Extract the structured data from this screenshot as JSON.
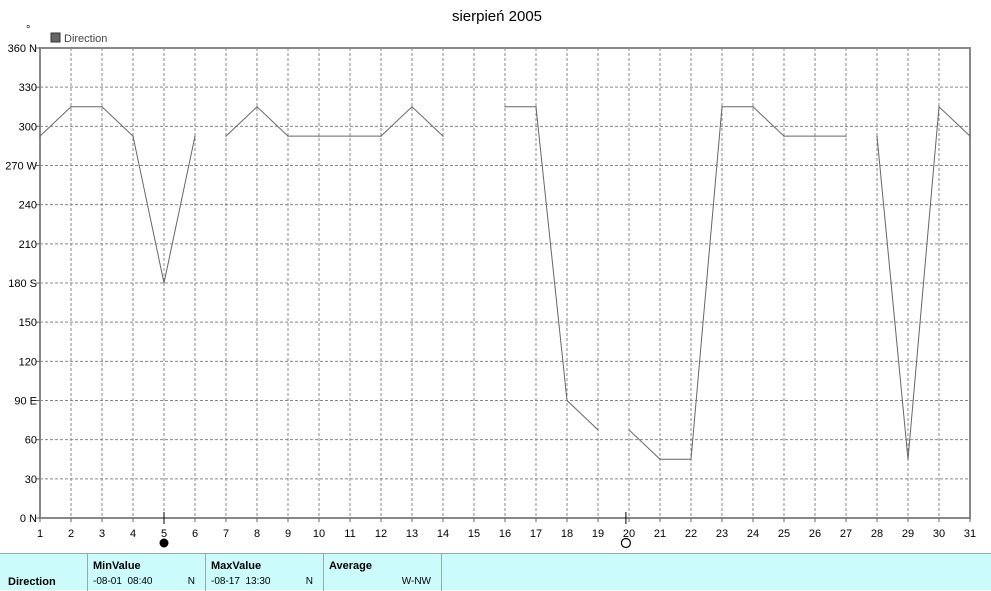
{
  "chart_data": {
    "type": "line",
    "title": "sierpień 2005",
    "y_unit_mark": "°",
    "legend": [
      "Direction"
    ],
    "series_color": "#666666",
    "ylim": [
      0,
      360
    ],
    "yticks": [
      {
        "v": 0,
        "label": "0",
        "dir": "N"
      },
      {
        "v": 30,
        "label": "30",
        "dir": ""
      },
      {
        "v": 60,
        "label": "60",
        "dir": ""
      },
      {
        "v": 90,
        "label": "90",
        "dir": "E"
      },
      {
        "v": 120,
        "label": "120",
        "dir": ""
      },
      {
        "v": 150,
        "label": "150",
        "dir": ""
      },
      {
        "v": 180,
        "label": "180",
        "dir": "S"
      },
      {
        "v": 210,
        "label": "210",
        "dir": ""
      },
      {
        "v": 240,
        "label": "240",
        "dir": ""
      },
      {
        "v": 270,
        "label": "270",
        "dir": "W"
      },
      {
        "v": 300,
        "label": "300",
        "dir": ""
      },
      {
        "v": 330,
        "label": "330",
        "dir": ""
      },
      {
        "v": 360,
        "label": "360",
        "dir": "N"
      }
    ],
    "xlim": [
      1,
      31
    ],
    "xticks": [
      "1",
      "2",
      "3",
      "4",
      "5",
      "6",
      "7",
      "8",
      "9",
      "10",
      "11",
      "12",
      "13",
      "14",
      "15",
      "16",
      "17",
      "18",
      "19",
      "20",
      "21",
      "22",
      "23",
      "24",
      "25",
      "26",
      "27",
      "28",
      "29",
      "30",
      "31"
    ],
    "grid": true,
    "series": [
      {
        "name": "Direction",
        "segments": [
          [
            [
              1,
              292.5
            ],
            [
              2,
              315
            ],
            [
              3,
              315
            ],
            [
              4,
              292.5
            ],
            [
              5,
              180
            ],
            [
              6,
              292.5
            ]
          ],
          [
            [
              7,
              292.5
            ],
            [
              8,
              315
            ],
            [
              9,
              292.5
            ],
            [
              10,
              292.5
            ],
            [
              11,
              292.5
            ],
            [
              12,
              292.5
            ],
            [
              13,
              315
            ],
            [
              14,
              292.5
            ]
          ],
          [
            [
              16,
              315
            ],
            [
              17,
              315
            ],
            [
              18,
              90
            ],
            [
              19,
              67.5
            ]
          ],
          [
            [
              20,
              67.5
            ],
            [
              21,
              45
            ],
            [
              22,
              45
            ],
            [
              23,
              315
            ],
            [
              24,
              315
            ],
            [
              25,
              292.5
            ],
            [
              26,
              292.5
            ],
            [
              27,
              292.5
            ]
          ],
          [
            [
              28,
              292.5
            ],
            [
              29,
              45
            ],
            [
              30,
              315
            ],
            [
              31,
              292.5
            ]
          ]
        ]
      }
    ],
    "moon_phases": [
      {
        "day": 5,
        "phase": "new-moon"
      },
      {
        "day": 19.9,
        "phase": "full-moon"
      }
    ]
  },
  "stats": {
    "row_label": "Direction",
    "min": {
      "header": "MinValue",
      "date": "-08-01",
      "time": "08:40",
      "dir": "N"
    },
    "max": {
      "header": "MaxValue",
      "date": "-08-17",
      "time": "13:30",
      "dir": "N"
    },
    "avg": {
      "header": "Average",
      "value": "W-NW"
    }
  }
}
